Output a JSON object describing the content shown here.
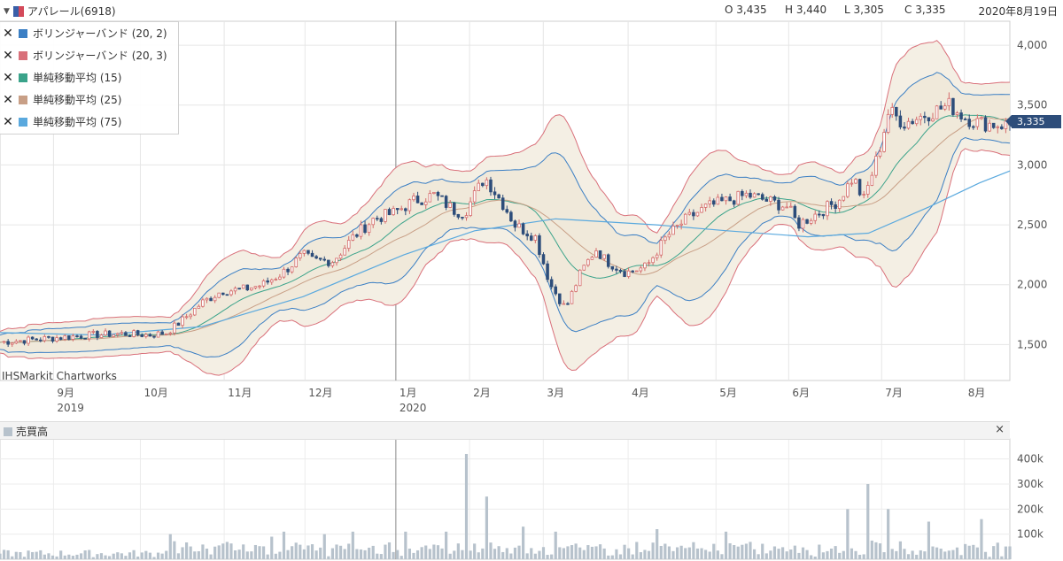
{
  "header": {
    "symbol": "アパレール(6918)",
    "open": "O 3,435",
    "high": "H 3,440",
    "low": "L 3,305",
    "close": "C 3,335",
    "date": "2020年8月19日"
  },
  "legend": [
    {
      "label": "ボリンジャーバンド (20, 2)",
      "color": "#3b7fc4"
    },
    {
      "label": "ボリンジャーバンド (20, 3)",
      "color": "#d9707a"
    },
    {
      "label": "単純移動平均 (15)",
      "color": "#3aa38a"
    },
    {
      "label": "単純移動平均 (25)",
      "color": "#c89f86"
    },
    {
      "label": "単純移動平均 (75)",
      "color": "#5aa9de"
    }
  ],
  "brand": "IHSMarkit Chartworks",
  "price_tag": "3,335",
  "volume_panel": {
    "title": "売買高",
    "close": "×"
  },
  "chart_data": [
    {
      "type": "candlestick",
      "x_labels": [
        {
          "label": "9月",
          "year": "2019",
          "pos": 0.053
        },
        {
          "label": "10月",
          "pos": 0.139
        },
        {
          "label": "11月",
          "pos": 0.222
        },
        {
          "label": "12月",
          "pos": 0.302
        },
        {
          "label": "1月",
          "year": "2020",
          "pos": 0.392
        },
        {
          "label": "2月",
          "pos": 0.465
        },
        {
          "label": "3月",
          "pos": 0.538
        },
        {
          "label": "4月",
          "pos": 0.622
        },
        {
          "label": "5月",
          "pos": 0.709
        },
        {
          "label": "6月",
          "pos": 0.781
        },
        {
          "label": "7月",
          "pos": 0.873
        },
        {
          "label": "8月",
          "pos": 0.955
        }
      ],
      "ylim": [
        1200,
        4200
      ],
      "yticks": [
        {
          "value": 1500,
          "label": "1,500"
        },
        {
          "value": 2000,
          "label": "2,000"
        },
        {
          "value": 2500,
          "label": "2,500"
        },
        {
          "value": 3000,
          "label": "3,000"
        },
        {
          "value": 3500,
          "label": "3,500"
        },
        {
          "value": 4000,
          "label": "4,000"
        }
      ],
      "last_price": 3335,
      "series": [
        {
          "name": "ボリンジャーバンド (20, 2)",
          "color": "#3b7fc4"
        },
        {
          "name": "ボリンジャーバンド (20, 3)",
          "color": "#d9707a"
        },
        {
          "name": "単純移動平均 (15)",
          "color": "#3aa38a"
        },
        {
          "name": "単純移動平均 (25)",
          "color": "#c89f86"
        },
        {
          "name": "単純移動平均 (75)",
          "color": "#5aa9de"
        }
      ],
      "price_path": [
        [
          0,
          1520
        ],
        [
          0.03,
          1540
        ],
        [
          0.06,
          1560
        ],
        [
          0.09,
          1580
        ],
        [
          0.12,
          1590
        ],
        [
          0.15,
          1580
        ],
        [
          0.165,
          1600
        ],
        [
          0.18,
          1700
        ],
        [
          0.2,
          1850
        ],
        [
          0.22,
          1950
        ],
        [
          0.24,
          1960
        ],
        [
          0.26,
          2000
        ],
        [
          0.28,
          2100
        ],
        [
          0.3,
          2250
        ],
        [
          0.31,
          2200
        ],
        [
          0.33,
          2200
        ],
        [
          0.35,
          2400
        ],
        [
          0.37,
          2550
        ],
        [
          0.39,
          2600
        ],
        [
          0.41,
          2700
        ],
        [
          0.43,
          2750
        ],
        [
          0.45,
          2620
        ],
        [
          0.46,
          2600
        ],
        [
          0.48,
          2900
        ],
        [
          0.5,
          2650
        ],
        [
          0.51,
          2500
        ],
        [
          0.53,
          2400
        ],
        [
          0.545,
          2000
        ],
        [
          0.56,
          1800
        ],
        [
          0.575,
          2100
        ],
        [
          0.59,
          2300
        ],
        [
          0.6,
          2200
        ],
        [
          0.62,
          2100
        ],
        [
          0.64,
          2150
        ],
        [
          0.66,
          2400
        ],
        [
          0.68,
          2550
        ],
        [
          0.7,
          2650
        ],
        [
          0.72,
          2700
        ],
        [
          0.74,
          2750
        ],
        [
          0.76,
          2700
        ],
        [
          0.78,
          2650
        ],
        [
          0.79,
          2500
        ],
        [
          0.81,
          2600
        ],
        [
          0.83,
          2700
        ],
        [
          0.845,
          2900
        ],
        [
          0.855,
          2700
        ],
        [
          0.87,
          3100
        ],
        [
          0.88,
          3450
        ],
        [
          0.895,
          3350
        ],
        [
          0.91,
          3400
        ],
        [
          0.925,
          3450
        ],
        [
          0.94,
          3500
        ],
        [
          0.955,
          3400
        ],
        [
          0.97,
          3350
        ],
        [
          0.985,
          3340
        ],
        [
          1,
          3335
        ]
      ],
      "ma75_path": [
        [
          0,
          1600
        ],
        [
          0.1,
          1580
        ],
        [
          0.2,
          1650
        ],
        [
          0.3,
          1900
        ],
        [
          0.4,
          2250
        ],
        [
          0.47,
          2450
        ],
        [
          0.55,
          2550
        ],
        [
          0.65,
          2500
        ],
        [
          0.72,
          2450
        ],
        [
          0.8,
          2400
        ],
        [
          0.86,
          2430
        ],
        [
          0.92,
          2650
        ],
        [
          0.97,
          2850
        ],
        [
          1,
          2950
        ]
      ]
    },
    {
      "type": "bar",
      "title": "売買高",
      "ylim": [
        0,
        480000
      ],
      "yticks": [
        {
          "value": 100000,
          "label": "100k"
        },
        {
          "value": 200000,
          "label": "200k"
        },
        {
          "value": 300000,
          "label": "300k"
        },
        {
          "value": 400000,
          "label": "400k"
        }
      ],
      "peaks": [
        [
          0.17,
          100000
        ],
        [
          0.27,
          90000
        ],
        [
          0.28,
          110000
        ],
        [
          0.32,
          100000
        ],
        [
          0.35,
          110000
        ],
        [
          0.4,
          110000
        ],
        [
          0.44,
          110000
        ],
        [
          0.46,
          420000
        ],
        [
          0.48,
          250000
        ],
        [
          0.5,
          150000
        ],
        [
          0.52,
          130000
        ],
        [
          0.55,
          110000
        ],
        [
          0.65,
          120000
        ],
        [
          0.72,
          110000
        ],
        [
          0.84,
          200000
        ],
        [
          0.86,
          300000
        ],
        [
          0.88,
          200000
        ],
        [
          0.92,
          150000
        ],
        [
          0.97,
          160000
        ]
      ]
    }
  ]
}
